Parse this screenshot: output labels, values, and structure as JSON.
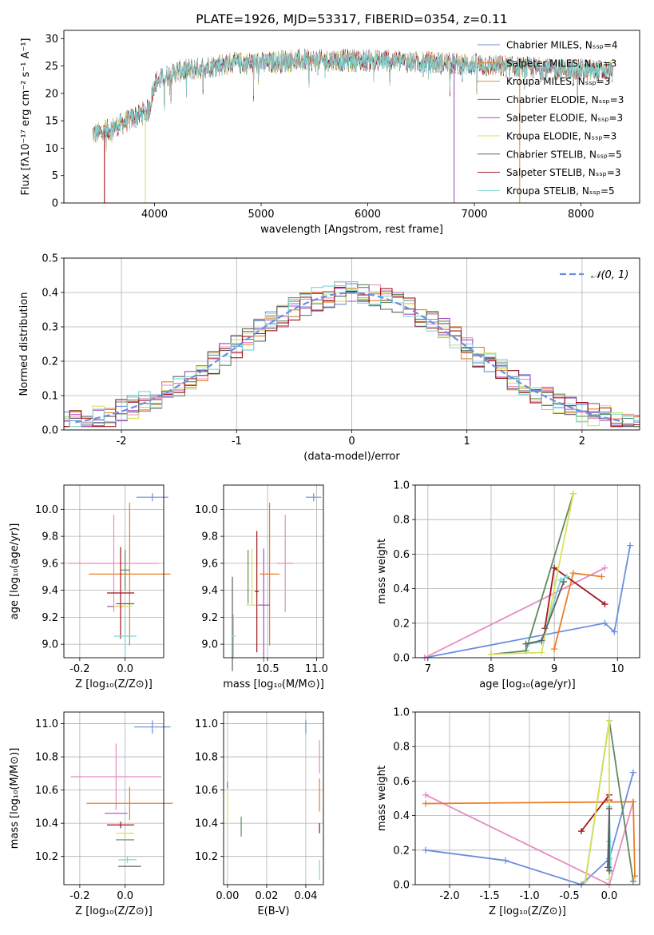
{
  "colors": {
    "chabrier_miles": "#6c8ede",
    "salpeter_miles": "#ea7e23",
    "kroupa_miles": "#d39a36",
    "chabrier_elodie": "#5f8a5f",
    "salpeter_elodie": "#a54fc0",
    "kroupa_elodie": "#d9e15a",
    "chabrier_stelib": "#606060",
    "salpeter_stelib": "#a0141c",
    "kroupa_stelib": "#7fd6d6",
    "pink": "#e78ac3",
    "normal_curve": "#6c8ede",
    "grid": "#b0b0b0"
  },
  "chart_data": [
    {
      "id": "spectrum",
      "type": "line",
      "title": "PLATE=1926, MJD=53317, FIBERID=0354, z=0.11",
      "xlabel": "wavelength [Angstrom, rest frame]",
      "ylabel": "Flux [fλ10⁻¹⁷ erg cm⁻² s⁻¹ A⁻¹]",
      "xlim": [
        3150,
        8550
      ],
      "ylim": [
        0,
        31.5
      ],
      "xticks": [
        4000,
        5000,
        6000,
        7000,
        8000
      ],
      "yticks": [
        0,
        5,
        10,
        15,
        20,
        25,
        30
      ],
      "grid": false,
      "legend_position": "top-right",
      "legend": [
        "Chabrier MILES, Nₛₛₚ=4",
        "Salpeter MILES, Nₛₛₚ=3",
        "Kroupa MILES, Nₛₛₚ=3",
        "Chabrier ELODIE, Nₛₛₚ=3",
        "Salpeter ELODIE, Nₛₛₚ=3",
        "Kroupa ELODIE, Nₛₛₚ=3",
        "Chabrier STELIB, Nₛₛₚ=5",
        "Salpeter STELIB, Nₛₛₚ=3",
        "Kroupa STELIB, Nₛₛₚ=5"
      ],
      "continuum": [
        [
          3420,
          12.5
        ],
        [
          3600,
          13.5
        ],
        [
          3800,
          15.5
        ],
        [
          3950,
          17
        ],
        [
          4000,
          22
        ],
        [
          4200,
          24
        ],
        [
          4400,
          24.5
        ],
        [
          4700,
          25.5
        ],
        [
          5000,
          25.5
        ],
        [
          5300,
          26
        ],
        [
          5700,
          26
        ],
        [
          6200,
          26
        ],
        [
          6700,
          25.5
        ],
        [
          7200,
          25
        ],
        [
          7700,
          24.5
        ],
        [
          8300,
          24
        ]
      ],
      "drops": [
        {
          "series": 7,
          "x": 3530
        },
        {
          "series": 5,
          "x": 3915
        },
        {
          "series": 4,
          "x": 6810
        },
        {
          "series": 2,
          "x": 7425
        }
      ]
    },
    {
      "id": "residuals",
      "type": "histogram",
      "xlabel": "(data-model)/error",
      "ylabel": "Normed distribution",
      "xlim": [
        -2.5,
        2.5
      ],
      "ylim": [
        0,
        0.5
      ],
      "xticks": [
        -2,
        -1,
        0,
        1,
        2
      ],
      "yticks": [
        0,
        0.1,
        0.2,
        0.3,
        0.4,
        0.5
      ],
      "grid": true,
      "bin_width": 0.1,
      "legend_position": "top-right",
      "legend": [
        "𝒩(0, 1)"
      ]
    },
    {
      "id": "age_vs_z",
      "type": "errorbar",
      "xlabel": "Z [log₁₀(Z/Z⊙)]",
      "ylabel": "age  [log₁₀(age/yr)]",
      "xlim": [
        -0.27,
        0.17
      ],
      "ylim": [
        8.9,
        10.18
      ],
      "xticks": [
        -0.2,
        0.0
      ],
      "yticks": [
        9.0,
        9.2,
        9.4,
        9.6,
        9.8,
        10.0
      ],
      "grid": true,
      "points": [
        {
          "c": "chabrier_miles",
          "x": 0.12,
          "xe": 0.07,
          "y": 10.09,
          "ye": 0.03
        },
        {
          "c": "salpeter_miles",
          "x": 0.02,
          "xe": 0.18,
          "y": 9.52,
          "ye": 0.53
        },
        {
          "c": "pink",
          "x": -0.05,
          "xe": 0.2,
          "y": 9.6,
          "ye": 0.36
        },
        {
          "c": "chabrier_elodie",
          "x": 0.0,
          "xe": 0.02,
          "y": 9.55,
          "ye": 0.15
        },
        {
          "c": "salpeter_elodie",
          "x": -0.04,
          "xe": 0.04,
          "y": 9.28,
          "ye": 0.0
        },
        {
          "c": "kroupa_elodie",
          "x": -0.01,
          "xe": 0.04,
          "y": 9.28,
          "ye": 0.0
        },
        {
          "c": "salpeter_stelib",
          "x": -0.02,
          "xe": 0.06,
          "y": 9.38,
          "ye": 0.34
        },
        {
          "c": "chabrier_stelib",
          "x": 0.0,
          "xe": 0.04,
          "y": 9.3,
          "ye": 0.0
        },
        {
          "c": "kroupa_stelib",
          "x": 0.0,
          "xe": 0.05,
          "y": 9.06,
          "ye": 0.16
        }
      ]
    },
    {
      "id": "age_vs_mass",
      "type": "errorbar",
      "xlabel": "mass [log₁₀(M/M⊙)]",
      "ylabel": "",
      "xlim": [
        10.05,
        11.07
      ],
      "ylim": [
        8.9,
        10.18
      ],
      "xticks": [
        10.5,
        11.0
      ],
      "yticks": [
        9.0,
        9.2,
        9.4,
        9.6,
        9.8,
        10.0
      ],
      "grid": true,
      "points": [
        {
          "c": "chabrier_miles",
          "x": 10.97,
          "xe": 0.08,
          "y": 10.09,
          "ye": 0.03
        },
        {
          "c": "salpeter_miles",
          "x": 10.52,
          "xe": 0.1,
          "y": 9.52,
          "ye": 0.53
        },
        {
          "c": "pink",
          "x": 10.68,
          "xe": 0.08,
          "y": 9.6,
          "ye": 0.36
        },
        {
          "c": "chabrier_elodie",
          "x": 10.3,
          "xe": 0.0,
          "y": 9.5,
          "ye": 0.2
        },
        {
          "c": "kroupa_elodie",
          "x": 10.34,
          "xe": 0.0,
          "y": 9.5,
          "ye": 0.21
        },
        {
          "c": "salpeter_elodie",
          "x": 10.46,
          "xe": 0.06,
          "y": 9.29,
          "ye": 0.42
        },
        {
          "c": "kroupa_elodie",
          "x": 10.34,
          "xe": 0.06,
          "y": 9.29,
          "ye": 0.0
        },
        {
          "c": "salpeter_stelib",
          "x": 10.39,
          "xe": 0.02,
          "y": 9.39,
          "ye": 0.45
        },
        {
          "c": "chabrier_stelib",
          "x": 10.14,
          "xe": 0.0,
          "y": 9.15,
          "ye": 0.35
        },
        {
          "c": "kroupa_stelib",
          "x": 10.15,
          "xe": 0.02,
          "y": 9.06,
          "ye": 0.16
        }
      ]
    },
    {
      "id": "weight_vs_age",
      "type": "line",
      "xlabel": "age  [log₁₀(age/yr)]",
      "ylabel": "mass weight",
      "xlim": [
        6.8,
        10.35
      ],
      "ylim": [
        0,
        1.0
      ],
      "xticks": [
        7,
        8,
        9,
        10
      ],
      "yticks": [
        0.0,
        0.2,
        0.4,
        0.6,
        0.8,
        1.0
      ],
      "grid": true,
      "series": [
        {
          "c": "chabrier_miles",
          "x": [
            6.95,
            9.8,
            9.95,
            10.2
          ],
          "y": [
            0.0,
            0.2,
            0.15,
            0.65
          ]
        },
        {
          "c": "pink",
          "x": 6.95,
          "y": 0.0,
          "pts": [
            [
              6.95,
              0.0
            ],
            [
              9.8,
              0.52
            ]
          ]
        },
        {
          "c": "salpeter_miles",
          "x": [
            9.0,
            9.3,
            9.75
          ],
          "y": [
            0.05,
            0.49,
            0.47
          ]
        },
        {
          "c": "salpeter_stelib",
          "x": [
            8.85,
            9.0,
            9.8
          ],
          "y": [
            0.17,
            0.52,
            0.31
          ]
        },
        {
          "c": "chabrier_elodie",
          "x": [
            8.0,
            8.55,
            9.3
          ],
          "y": [
            0.02,
            0.04,
            0.95
          ]
        },
        {
          "c": "kroupa_elodie",
          "x": [
            8.0,
            8.8,
            9.3
          ],
          "y": [
            0.02,
            0.03,
            0.95
          ]
        },
        {
          "c": "kroupa_stelib",
          "x": [
            8.6,
            8.8,
            9.1,
            9.2
          ],
          "y": [
            0.08,
            0.09,
            0.45,
            0.47
          ]
        },
        {
          "c": "chabrier_stelib",
          "x": [
            8.55,
            8.8,
            9.15
          ],
          "y": [
            0.08,
            0.1,
            0.44
          ]
        }
      ]
    },
    {
      "id": "mass_vs_z",
      "type": "errorbar",
      "xlabel": "Z [log₁₀(Z/Z⊙)]",
      "ylabel": "mass [log₁₀(M/M⊙)]",
      "xlim": [
        -0.27,
        0.17
      ],
      "ylim": [
        10.03,
        11.07
      ],
      "xticks": [
        -0.2,
        0.0
      ],
      "yticks": [
        10.2,
        10.4,
        10.6,
        10.8,
        11.0
      ],
      "grid": true,
      "points": [
        {
          "c": "chabrier_miles",
          "x": 0.12,
          "xe": 0.08,
          "y": 10.98,
          "ye": 0.04
        },
        {
          "c": "pink",
          "x": -0.04,
          "xe": 0.2,
          "y": 10.68,
          "ye": 0.2
        },
        {
          "c": "salpeter_miles",
          "x": 0.02,
          "xe": 0.19,
          "y": 10.52,
          "ye": 0.1
        },
        {
          "c": "salpeter_elodie",
          "x": -0.04,
          "xe": 0.05,
          "y": 10.46,
          "ye": 0.0
        },
        {
          "c": "salpeter_stelib",
          "x": -0.02,
          "xe": 0.06,
          "y": 10.39,
          "ye": 0.02
        },
        {
          "c": "kroupa_elodie",
          "x": 0.0,
          "xe": 0.04,
          "y": 10.34,
          "ye": 0.0
        },
        {
          "c": "chabrier_elodie",
          "x": 0.0,
          "xe": 0.04,
          "y": 10.3,
          "ye": 0.0
        },
        {
          "c": "kroupa_stelib",
          "x": 0.01,
          "xe": 0.04,
          "y": 10.18,
          "ye": 0.02
        },
        {
          "c": "chabrier_stelib",
          "x": 0.02,
          "xe": 0.05,
          "y": 10.14,
          "ye": 0.0
        }
      ]
    },
    {
      "id": "mass_vs_ebv",
      "type": "errorbar",
      "xlabel": "E(B-V)",
      "ylabel": "",
      "xlim": [
        -0.002,
        0.049
      ],
      "ylim": [
        10.03,
        11.07
      ],
      "xticks": [
        0.0,
        0.02,
        0.04
      ],
      "yticks": [
        10.2,
        10.4,
        10.6,
        10.8,
        11.0
      ],
      "grid": true,
      "points": [
        {
          "c": "chabrier_miles",
          "x": 0.04,
          "xe": 0,
          "y": 10.98,
          "ye": 0.04
        },
        {
          "c": "pink",
          "x": 0.047,
          "xe": 0,
          "y": 10.8,
          "ye": 0.1
        },
        {
          "c": "salpeter_miles",
          "x": 0.047,
          "xe": 0,
          "y": 10.57,
          "ye": 0.1
        },
        {
          "c": "kroupa_elodie",
          "x": 0.0,
          "xe": 0,
          "y": 10.5,
          "ye": 0.12
        },
        {
          "c": "salpeter_elodie",
          "x": 0.0,
          "xe": 0,
          "y": 10.63,
          "ye": 0.02
        },
        {
          "c": "chabrier_elodie",
          "x": 0.007,
          "xe": 0,
          "y": 10.38,
          "ye": 0.06
        },
        {
          "c": "salpeter_stelib",
          "x": 0.047,
          "xe": 0,
          "y": 10.37,
          "ye": 0.03
        },
        {
          "c": "kroupa_stelib",
          "x": 0.047,
          "xe": 0,
          "y": 10.12,
          "ye": 0.06
        }
      ]
    },
    {
      "id": "weight_vs_z",
      "type": "line",
      "xlabel": "Z [log₁₀(Z/Z⊙)]",
      "ylabel": "mass weight",
      "xlim": [
        -2.43,
        0.38
      ],
      "ylim": [
        0,
        1.0
      ],
      "xticks": [
        -2.0,
        -1.5,
        -1.0,
        -0.5,
        0.0
      ],
      "yticks": [
        0.0,
        0.2,
        0.4,
        0.6,
        0.8,
        1.0
      ],
      "grid": true,
      "series": [
        {
          "c": "chabrier_miles",
          "x": [
            -2.3,
            -1.3,
            -0.35,
            0.0,
            0.3
          ],
          "y": [
            0.2,
            0.14,
            0.0,
            0.15,
            0.65
          ]
        },
        {
          "c": "pink",
          "x": [
            -2.3,
            0.0,
            0.3
          ],
          "y": [
            0.52,
            0.0,
            0.48
          ]
        },
        {
          "c": "salpeter_miles",
          "x": [
            -2.3,
            0.3,
            0.32
          ],
          "y": [
            0.47,
            0.48,
            0.05
          ]
        },
        {
          "c": "salpeter_stelib",
          "x": [
            -0.35,
            0.0,
            0.0
          ],
          "y": [
            0.31,
            0.52,
            0.49
          ]
        },
        {
          "c": "chabrier_elodie",
          "x": [
            -0.3,
            0.0,
            0.3
          ],
          "y": [
            0.02,
            0.95,
            0.02
          ]
        },
        {
          "c": "kroupa_elodie",
          "x": [
            -0.3,
            0.0,
            0.0
          ],
          "y": [
            0.02,
            0.95,
            0.03
          ]
        },
        {
          "c": "kroupa_stelib",
          "x": [
            0.0,
            0.0,
            0.0,
            0.02
          ],
          "y": [
            0.1,
            0.25,
            0.45,
            0.08
          ]
        },
        {
          "c": "chabrier_stelib",
          "x": [
            -0.02,
            0.0,
            0.0
          ],
          "y": [
            0.1,
            0.44,
            0.08
          ]
        }
      ]
    }
  ]
}
